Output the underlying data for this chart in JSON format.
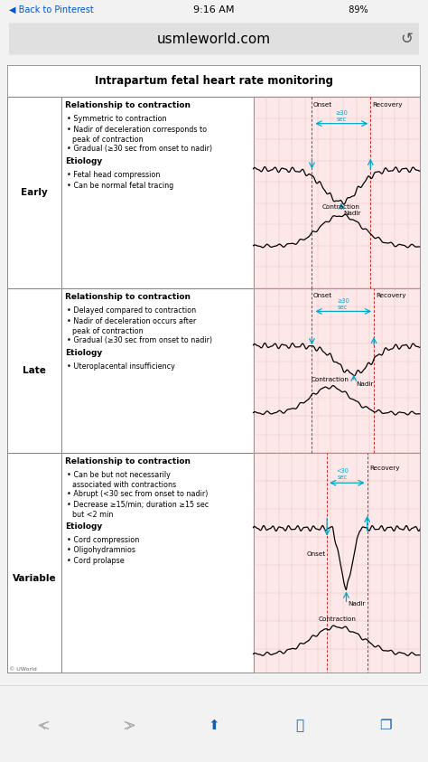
{
  "title": "Intrapartum fetal heart rate monitoring",
  "bg_color": "#f2f2f2",
  "table_bg": "#ffffff",
  "grid_bg": "#fce8e8",
  "grid_line_color": "#f0b0b0",
  "grid_dashed_color": "#cc3333",
  "arrow_color": "#00aacc",
  "text_color": "#000000",
  "phone_status_bg": "#f2f2f2",
  "phone_status_text": "#000000",
  "browser_bar_bg": "#e8e8e8",
  "browser_url": "usmleworld.com",
  "status_time": "9:16 AM",
  "status_battery": "89%",
  "copyright": "© UWorld",
  "rows": [
    {
      "label": "Early",
      "rel_header": "Relationship to contraction",
      "rel_bullets": [
        "Symmetric to contraction",
        "Nadir of deceleration corresponds to\npeak of contraction",
        "Gradual (≥30 sec from onset to nadir)"
      ],
      "etiology_header": "Etiology",
      "etiology_bullets": [
        "Fetal head compression",
        "Can be normal fetal tracing"
      ],
      "sec_label": "≥30\nsec",
      "chart_type": "early"
    },
    {
      "label": "Late",
      "rel_header": "Relationship to contraction",
      "rel_bullets": [
        "Delayed compared to contraction",
        "Nadir of deceleration occurs after\npeak of contraction",
        "Gradual (≥30 sec from onset to nadir)"
      ],
      "etiology_header": "Etiology",
      "etiology_bullets": [
        "Uteroplacental insufficiency"
      ],
      "sec_label": "≥30\nsec",
      "chart_type": "late"
    },
    {
      "label": "Variable",
      "rel_header": "Relationship to contraction",
      "rel_bullets": [
        "Can be but not necessarily\nassociated with contractions",
        "Abrupt (<30 sec from onset to nadir)",
        "Decrease ≥15/min; duration ≥15 sec\nbut <2 min"
      ],
      "etiology_header": "Etiology",
      "etiology_bullets": [
        "Cord compression",
        "Oligohydramnios",
        "Cord prolapse"
      ],
      "sec_label": "<30\nsec",
      "chart_type": "variable"
    }
  ]
}
